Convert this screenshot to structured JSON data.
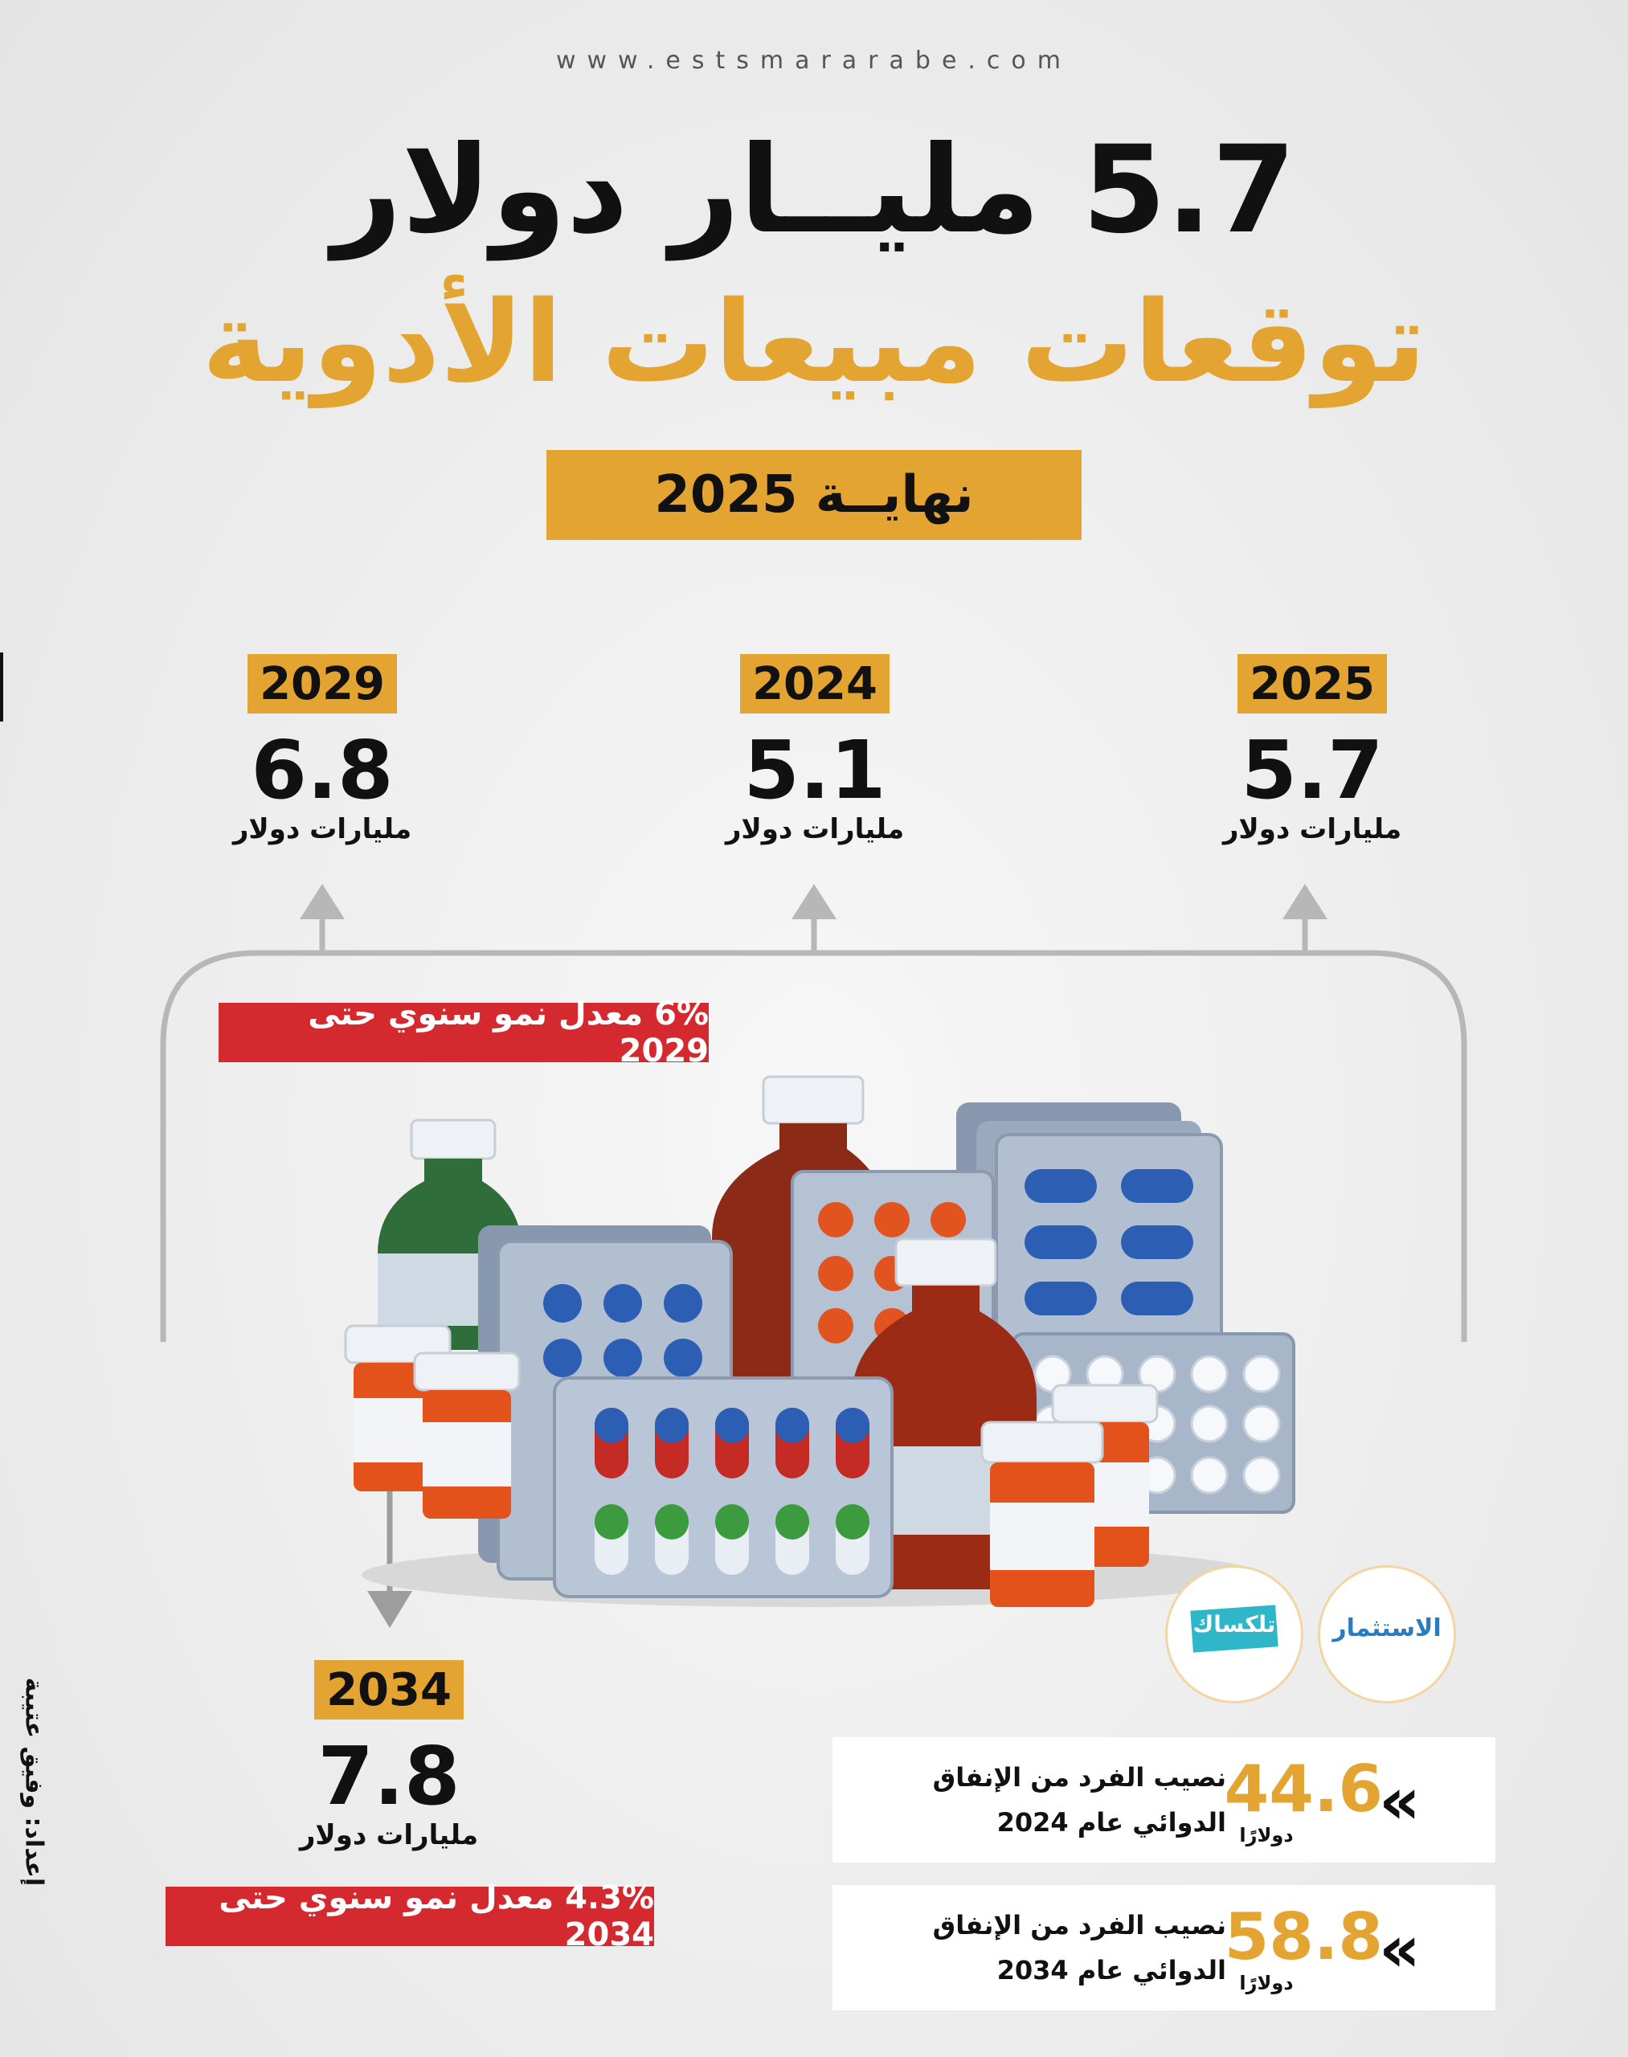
{
  "header": {
    "url": "www.estsmararabe.com",
    "title_line1": "5.7 مليــار دولار",
    "title_line2": "توقعات مبيعات الأدوية",
    "subtitle": "نهايــة 2025"
  },
  "forecast": {
    "unit_label": "مليارات دولار",
    "items": [
      {
        "year": "2025",
        "value": "5.7"
      },
      {
        "year": "2024",
        "value": "5.1"
      },
      {
        "year": "2029",
        "value": "6.8"
      },
      {
        "year": "2034",
        "value": "7.8"
      }
    ]
  },
  "growth": {
    "to_2029": "6% معدل نمو سنوي حتى 2029",
    "to_2034": "4.3% معدل نمو سنوي حتى 2034"
  },
  "per_capita": [
    {
      "value": "44.6",
      "unit": "دولارًا",
      "line1": "نصيب الفرد من الإنفاق",
      "line2": "الدوائي عام 2024"
    },
    {
      "value": "58.8",
      "unit": "دولارًا",
      "line1": "نصيب الفرد من الإنفاق",
      "line2": "الدوائي عام 2034"
    }
  ],
  "logos": {
    "istithmar": "الاستثمار",
    "telegraph": "تلكساك"
  },
  "credit": "إعداد: وفيق عتيبة",
  "colors": {
    "accent": "#e3a431",
    "growth_red": "#d42a2f",
    "text": "#111111"
  },
  "icons": {
    "chevron": "double-chevron-left-icon",
    "arrow_up": "arrow-up-icon",
    "arrow_down": "arrow-down-icon"
  }
}
